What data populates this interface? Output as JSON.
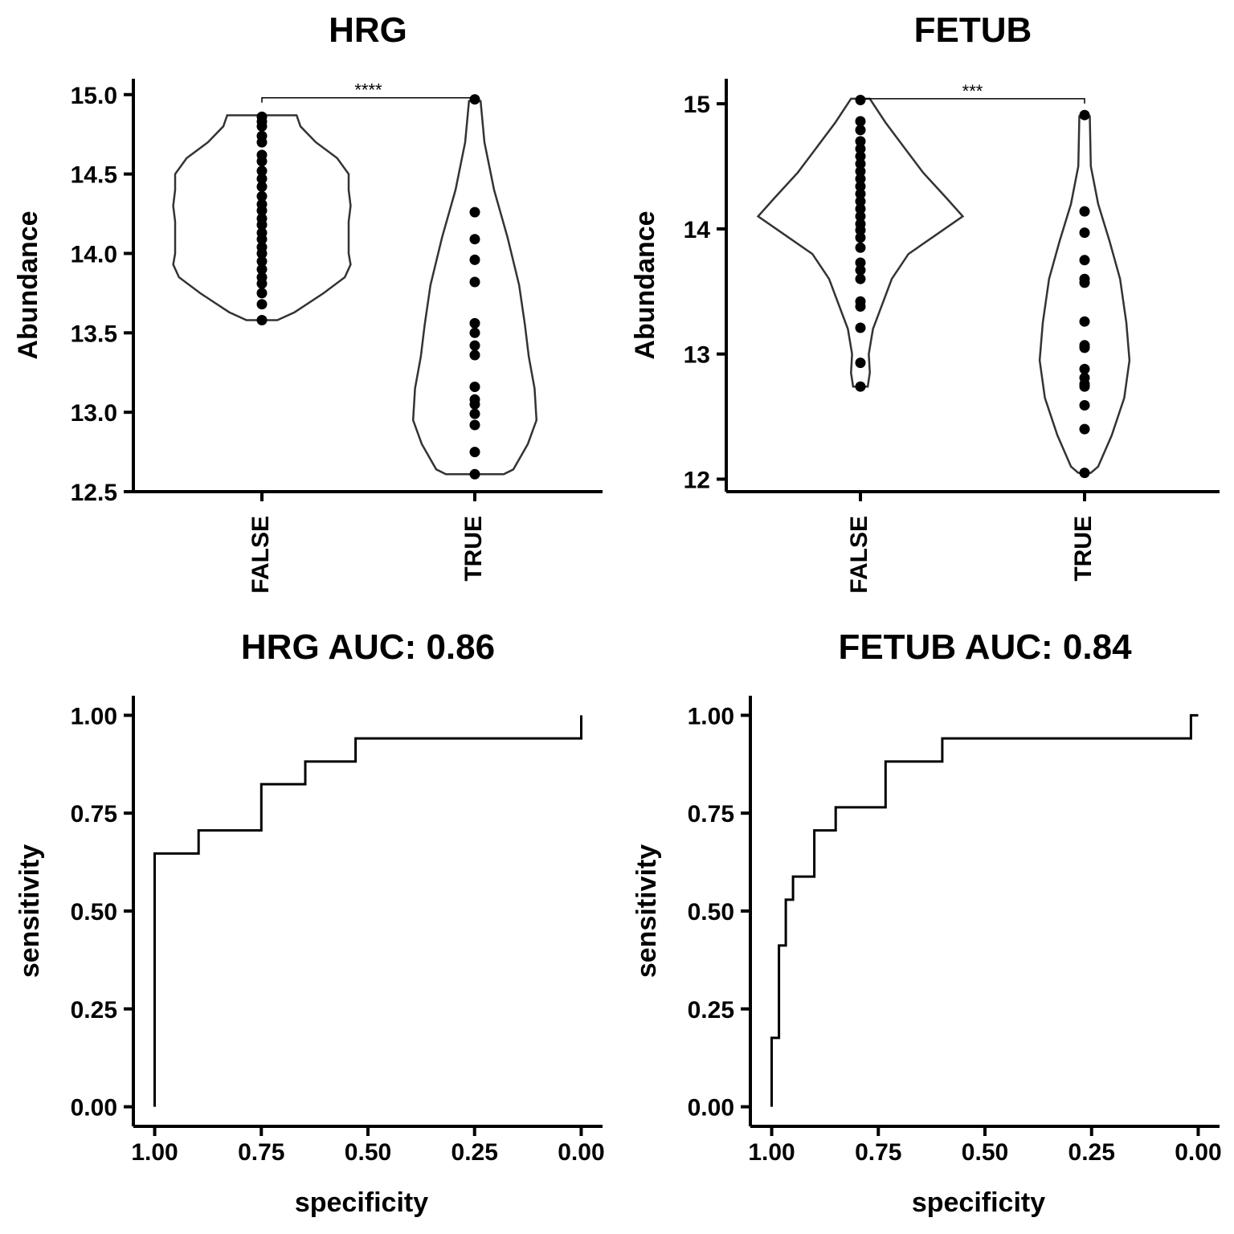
{
  "chart_data": [
    {
      "type": "violin",
      "title": "HRG",
      "xlabel": "",
      "ylabel": "Abundance",
      "categories": [
        "FALSE",
        "TRUE"
      ],
      "ylim": [
        12.5,
        15.1
      ],
      "yticks": [
        12.5,
        13.0,
        13.5,
        14.0,
        14.5,
        15.0
      ],
      "ytick_labels": [
        "12.5",
        "13.0",
        "13.5",
        "14.0",
        "14.5",
        "15.0"
      ],
      "significance": {
        "label": "****",
        "from": "FALSE",
        "to": "TRUE",
        "y": 14.98
      },
      "groups": [
        {
          "name": "FALSE",
          "points": [
            14.86,
            14.83,
            14.8,
            14.74,
            14.7,
            14.62,
            14.58,
            14.52,
            14.47,
            14.42,
            14.36,
            14.31,
            14.27,
            14.22,
            14.18,
            14.13,
            14.09,
            14.04,
            14.0,
            13.95,
            13.9,
            13.85,
            13.81,
            13.75,
            13.68,
            13.58
          ],
          "density": [
            [
              13.58,
              0.16
            ],
            [
              13.63,
              0.34
            ],
            [
              13.75,
              0.64
            ],
            [
              13.85,
              0.86
            ],
            [
              13.93,
              0.92
            ],
            [
              14.0,
              0.9
            ],
            [
              14.1,
              0.9
            ],
            [
              14.2,
              0.9
            ],
            [
              14.3,
              0.92
            ],
            [
              14.4,
              0.9
            ],
            [
              14.5,
              0.9
            ],
            [
              14.6,
              0.78
            ],
            [
              14.7,
              0.56
            ],
            [
              14.8,
              0.4
            ],
            [
              14.87,
              0.36
            ]
          ]
        },
        {
          "name": "TRUE",
          "points": [
            14.97,
            14.26,
            14.09,
            13.96,
            13.82,
            13.56,
            13.5,
            13.42,
            13.36,
            13.16,
            13.08,
            13.05,
            12.99,
            12.92,
            12.75,
            12.61
          ],
          "density": [
            [
              12.61,
              0.3
            ],
            [
              12.64,
              0.4
            ],
            [
              12.8,
              0.55
            ],
            [
              12.95,
              0.64
            ],
            [
              13.15,
              0.62
            ],
            [
              13.35,
              0.56
            ],
            [
              13.55,
              0.52
            ],
            [
              13.8,
              0.46
            ],
            [
              14.1,
              0.34
            ],
            [
              14.4,
              0.2
            ],
            [
              14.7,
              0.1
            ],
            [
              14.96,
              0.06
            ]
          ]
        }
      ]
    },
    {
      "type": "violin",
      "title": "FETUB",
      "xlabel": "",
      "ylabel": "Abundance",
      "categories": [
        "FALSE",
        "TRUE"
      ],
      "ylim": [
        11.9,
        15.2
      ],
      "yticks": [
        12,
        13,
        14,
        15
      ],
      "ytick_labels": [
        "12",
        "13",
        "14",
        "15"
      ],
      "significance": {
        "label": "***",
        "from": "FALSE",
        "to": "TRUE",
        "y": 15.04
      },
      "groups": [
        {
          "name": "FALSE",
          "points": [
            15.03,
            14.86,
            14.79,
            14.7,
            14.64,
            14.58,
            14.52,
            14.46,
            14.4,
            14.34,
            14.28,
            14.22,
            14.16,
            14.1,
            14.04,
            13.99,
            13.93,
            13.85,
            13.73,
            13.67,
            13.6,
            13.42,
            13.38,
            13.21,
            12.93,
            12.74
          ],
          "density": [
            [
              12.74,
              0.07
            ],
            [
              12.85,
              0.09
            ],
            [
              13.0,
              0.08
            ],
            [
              13.2,
              0.12
            ],
            [
              13.4,
              0.21
            ],
            [
              13.6,
              0.3
            ],
            [
              13.8,
              0.46
            ],
            [
              13.95,
              0.72
            ],
            [
              14.1,
              0.98
            ],
            [
              14.25,
              0.82
            ],
            [
              14.45,
              0.6
            ],
            [
              14.65,
              0.42
            ],
            [
              14.85,
              0.24
            ],
            [
              15.04,
              0.09
            ]
          ]
        },
        {
          "name": "TRUE",
          "points": [
            14.91,
            14.14,
            13.97,
            13.75,
            13.6,
            13.57,
            13.26,
            13.07,
            13.05,
            12.88,
            12.81,
            12.76,
            12.74,
            12.59,
            12.4,
            12.05
          ],
          "density": [
            [
              12.05,
              0.06
            ],
            [
              12.1,
              0.13
            ],
            [
              12.35,
              0.26
            ],
            [
              12.65,
              0.38
            ],
            [
              12.95,
              0.43
            ],
            [
              13.25,
              0.4
            ],
            [
              13.6,
              0.34
            ],
            [
              13.9,
              0.24
            ],
            [
              14.2,
              0.13
            ],
            [
              14.5,
              0.06
            ],
            [
              14.9,
              0.05
            ]
          ]
        }
      ]
    },
    {
      "type": "line",
      "title": "HRG AUC: 0.86",
      "xlabel": "specificity",
      "ylabel": "sensitivity",
      "xlim": [
        1.05,
        -0.05
      ],
      "ylim": [
        -0.05,
        1.05
      ],
      "xticks": [
        1.0,
        0.75,
        0.5,
        0.25,
        0.0
      ],
      "xtick_labels": [
        "1.00",
        "0.75",
        "0.50",
        "0.25",
        "0.00"
      ],
      "yticks": [
        0.0,
        0.25,
        0.5,
        0.75,
        1.0
      ],
      "ytick_labels": [
        "0.00",
        "0.25",
        "0.50",
        "0.75",
        "1.00"
      ],
      "series": [
        {
          "x": [
            1.0,
            1.0,
            0.897,
            0.897,
            0.75,
            0.75,
            0.647,
            0.647,
            0.529,
            0.529,
            0.0,
            0.0
          ],
          "y": [
            0.0,
            0.647,
            0.647,
            0.706,
            0.706,
            0.824,
            0.824,
            0.882,
            0.882,
            0.941,
            0.941,
            1.0
          ]
        }
      ]
    },
    {
      "type": "line",
      "title": "FETUB AUC: 0.84",
      "xlabel": "specificity",
      "ylabel": "sensitivity",
      "xlim": [
        1.05,
        -0.05
      ],
      "ylim": [
        -0.05,
        1.05
      ],
      "xticks": [
        1.0,
        0.75,
        0.5,
        0.25,
        0.0
      ],
      "xtick_labels": [
        "1.00",
        "0.75",
        "0.50",
        "0.25",
        "0.00"
      ],
      "yticks": [
        0.0,
        0.25,
        0.5,
        0.75,
        1.0
      ],
      "ytick_labels": [
        "0.00",
        "0.25",
        "0.50",
        "0.75",
        "1.00"
      ],
      "series": [
        {
          "x": [
            1.0,
            1.0,
            0.983,
            0.983,
            0.967,
            0.967,
            0.95,
            0.95,
            0.9,
            0.9,
            0.85,
            0.85,
            0.733,
            0.733,
            0.6,
            0.6,
            0.017,
            0.017,
            0.0
          ],
          "y": [
            0.0,
            0.176,
            0.176,
            0.412,
            0.412,
            0.529,
            0.529,
            0.588,
            0.588,
            0.706,
            0.706,
            0.765,
            0.765,
            0.882,
            0.882,
            0.941,
            0.941,
            1.0,
            1.0
          ]
        }
      ]
    }
  ]
}
